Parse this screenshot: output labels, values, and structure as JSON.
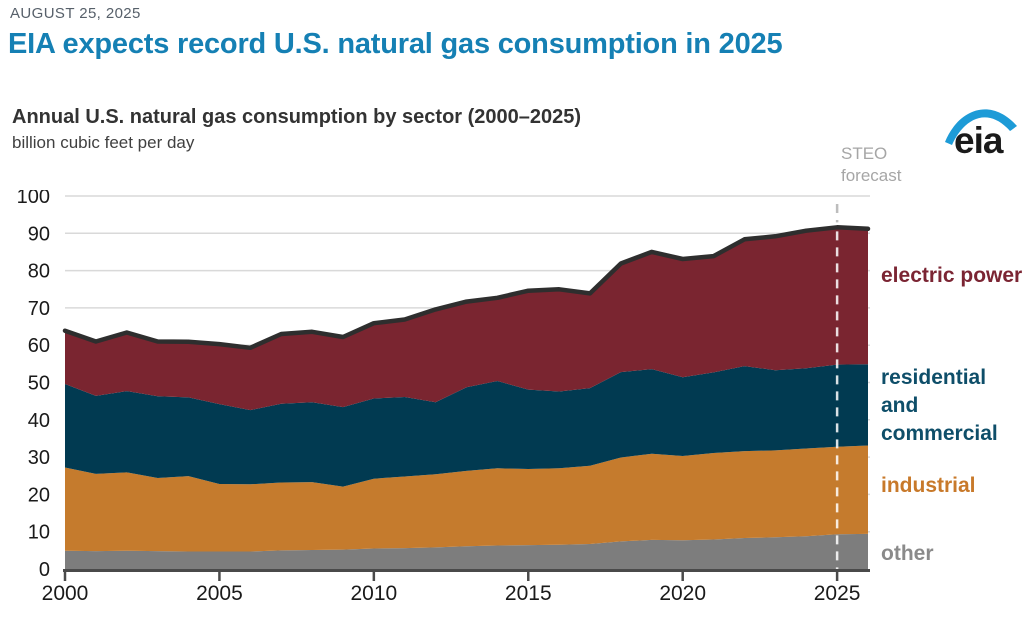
{
  "header": {
    "date": "AUGUST 25, 2025",
    "title": "EIA expects record U.S. natural gas consumption in 2025",
    "title_color": "#1580b4"
  },
  "logo": {
    "text": "eia",
    "swoosh_color": "#1d9bd7",
    "text_color": "#1a1a1a"
  },
  "chart_data": {
    "type": "area",
    "stacked": true,
    "title": "Annual U.S. natural gas consumption by sector (2000–2025)",
    "ylabel": "billion cubic feet per day",
    "xlim": [
      2000,
      2026
    ],
    "ylim": [
      0,
      100
    ],
    "xticks": [
      2000,
      2005,
      2010,
      2015,
      2020,
      2025
    ],
    "yticks": [
      0,
      10,
      20,
      30,
      40,
      50,
      60,
      70,
      80,
      90,
      100
    ],
    "grid": "horizontal",
    "gridline_color": "#d9d9d9",
    "axis_color": "#4a4a4a",
    "x": [
      2000,
      2001,
      2002,
      2003,
      2004,
      2005,
      2006,
      2007,
      2008,
      2009,
      2010,
      2011,
      2012,
      2013,
      2014,
      2015,
      2016,
      2017,
      2018,
      2019,
      2020,
      2021,
      2022,
      2023,
      2024,
      2025,
      2026
    ],
    "series": [
      {
        "name": "other",
        "color": "#7d7d7d",
        "values": [
          4.9,
          4.8,
          4.9,
          4.8,
          4.7,
          4.7,
          4.7,
          5.0,
          5.1,
          5.2,
          5.5,
          5.6,
          5.8,
          6.1,
          6.3,
          6.4,
          6.5,
          6.7,
          7.4,
          7.8,
          7.7,
          7.9,
          8.3,
          8.5,
          8.8,
          9.3,
          9.4
        ]
      },
      {
        "name": "industrial",
        "color": "#c57b2d",
        "values": [
          22.3,
          20.7,
          21.0,
          19.6,
          20.2,
          18.1,
          18.0,
          18.2,
          18.2,
          16.9,
          18.7,
          19.2,
          19.6,
          20.2,
          20.7,
          20.4,
          20.5,
          21.0,
          22.5,
          23.1,
          22.6,
          23.2,
          23.3,
          23.3,
          23.5,
          23.5,
          23.7
        ]
      },
      {
        "name": "residential and commercial",
        "color": "#013a51",
        "values": [
          22.4,
          20.9,
          21.8,
          21.9,
          21.1,
          21.4,
          19.9,
          21.1,
          21.4,
          21.3,
          21.5,
          21.3,
          19.3,
          22.4,
          23.4,
          21.3,
          20.6,
          20.8,
          22.9,
          22.7,
          21.1,
          21.6,
          22.8,
          21.5,
          21.5,
          22.0,
          21.8
        ]
      },
      {
        "name": "electric power",
        "color": "#7a2530",
        "values": [
          14.3,
          14.6,
          15.7,
          14.7,
          14.9,
          16.1,
          16.7,
          18.7,
          18.9,
          18.8,
          20.2,
          20.8,
          24.9,
          23.0,
          22.3,
          26.5,
          27.4,
          25.4,
          29.1,
          31.4,
          31.7,
          31.2,
          34.0,
          35.9,
          36.9,
          36.8,
          36.3
        ]
      }
    ],
    "total_line": {
      "color": "#2e2e2e",
      "width": 4.5
    },
    "forecast": {
      "label": "STEO forecast",
      "start_year": 2025,
      "line_color_above": "#bdbdbd",
      "line_color_over": "rgba(255,255,255,0.85)"
    },
    "legend": [
      {
        "text": "electric power",
        "color": "#7b2533"
      },
      {
        "text": "residential and commercial",
        "color": "#0e4e69"
      },
      {
        "text": "industrial",
        "color": "#c8792a"
      },
      {
        "text": "other",
        "color": "#8a8a8a"
      }
    ],
    "legend_position": "right"
  }
}
